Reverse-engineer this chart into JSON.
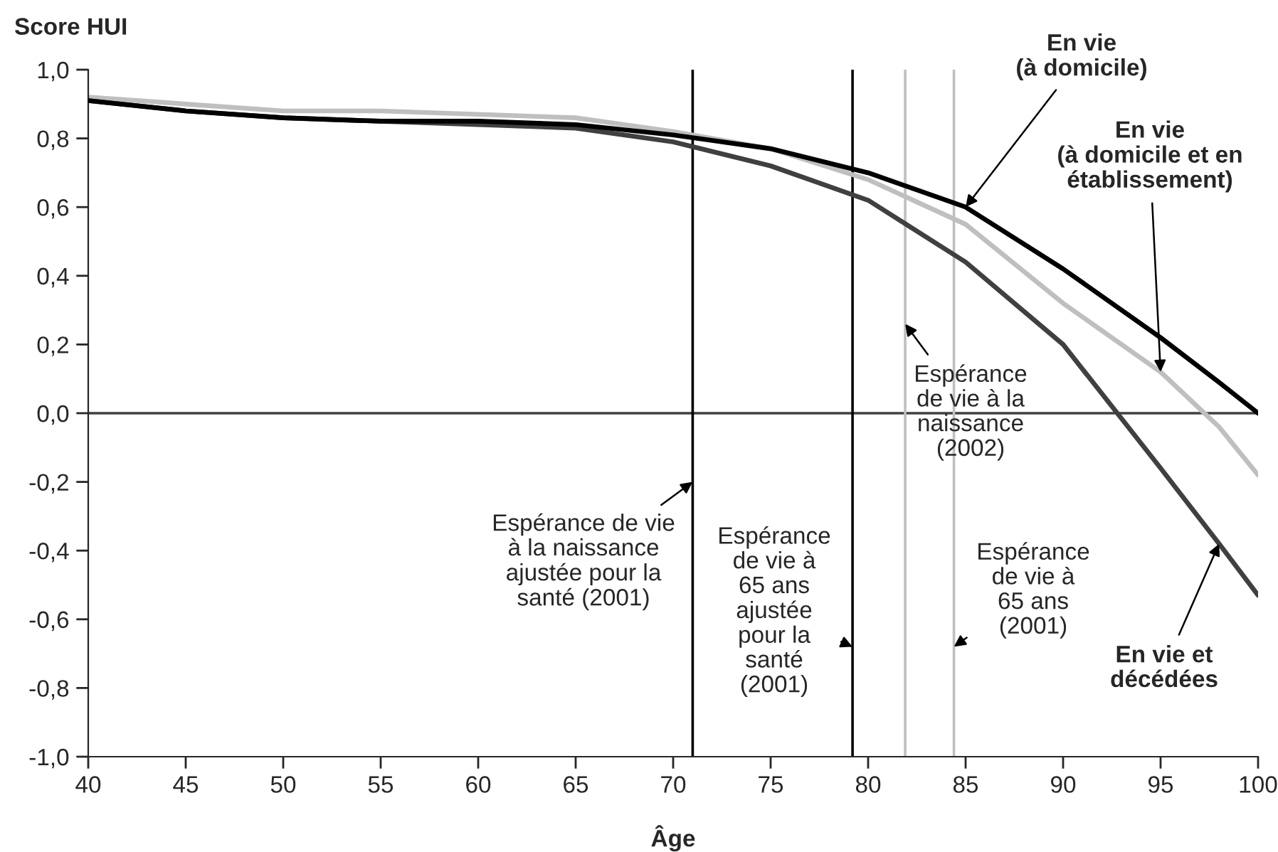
{
  "chart_data": {
    "type": "line",
    "ylabel": "Score HUI",
    "xlabel": "Âge",
    "x": [
      40,
      45,
      50,
      55,
      60,
      65,
      70,
      75,
      80,
      85,
      90,
      95,
      98,
      100
    ],
    "series": [
      {
        "color": "#bfbfbf",
        "values": [
          0.92,
          0.9,
          0.88,
          0.88,
          0.87,
          0.86,
          0.82,
          0.77,
          0.68,
          0.55,
          0.32,
          0.12,
          -0.04,
          -0.18
        ]
      },
      {
        "color": "#404040",
        "values": [
          0.91,
          0.88,
          0.86,
          0.85,
          0.84,
          0.83,
          0.79,
          0.72,
          0.62,
          0.44,
          0.2,
          -0.16,
          -0.38,
          -0.53
        ]
      },
      {
        "color": "#000000",
        "values": [
          0.91,
          0.88,
          0.86,
          0.85,
          0.85,
          0.84,
          0.81,
          0.77,
          0.7,
          0.6,
          0.42,
          0.22,
          0.09,
          0.0
        ]
      }
    ],
    "xlim": [
      40,
      100
    ],
    "xticks": [
      40,
      45,
      50,
      55,
      60,
      65,
      70,
      75,
      80,
      85,
      90,
      95,
      100
    ],
    "ylim": [
      -1.0,
      1.0
    ],
    "yticks": [
      {
        "value": -1.0,
        "label": "-1,0"
      },
      {
        "value": -0.8,
        "label": "-0,8"
      },
      {
        "value": -0.6,
        "label": "-0,6"
      },
      {
        "value": -0.4,
        "label": "-0,4"
      },
      {
        "value": -0.2,
        "label": "-0,2"
      },
      {
        "value": 0.0,
        "label": "0,0"
      },
      {
        "value": 0.2,
        "label": "0,2"
      },
      {
        "value": 0.4,
        "label": "0,4"
      },
      {
        "value": 0.6,
        "label": "0,6"
      },
      {
        "value": 0.8,
        "label": "0,8"
      },
      {
        "value": 1.0,
        "label": "1,0"
      }
    ],
    "ref_lines": [
      {
        "axis": "y",
        "value": 0.0,
        "color": "#404040"
      },
      {
        "axis": "x",
        "value": 71.0,
        "color": "#000000"
      },
      {
        "axis": "x",
        "value": 79.2,
        "color": "#000000"
      },
      {
        "axis": "x",
        "value": 81.9,
        "color": "#bfbfbf"
      },
      {
        "axis": "x",
        "value": 84.4,
        "color": "#bfbfbf"
      }
    ],
    "annotations": [
      {
        "text": "En vie\n(à domicile)",
        "x": 85,
        "y": 0.6
      },
      {
        "text": "En vie\n(à domicile et en\nétablissement)",
        "x": 95,
        "y": 0.12
      },
      {
        "text": "En vie et\ndécédées",
        "x": 98,
        "y": -0.38
      },
      {
        "text": "Espérance de vie\nà la naissance\najustée pour la\nsanté (2001)",
        "x": 71.0,
        "y": -0.2
      },
      {
        "text": "Espérance\nde vie à\n65 ans\najustée\npour la\nsanté\n(2001)",
        "x": 79.2,
        "y": -0.68
      },
      {
        "text": "Espérance\nde vie à la\nnaissance\n(2002)",
        "x": 81.9,
        "y": 0.26
      },
      {
        "text": "Espérance\nde vie à\n65 ans\n(2001)",
        "x": 84.4,
        "y": -0.68
      }
    ],
    "grid": false,
    "legend": false,
    "line_style": "solid",
    "marker": "none"
  }
}
